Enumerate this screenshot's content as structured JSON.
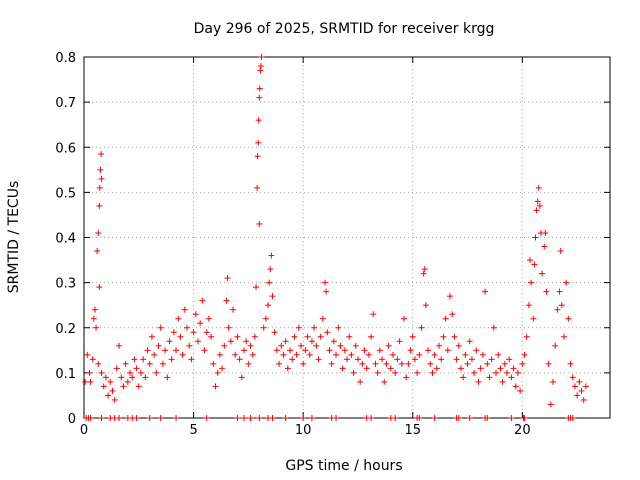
{
  "chart_data": {
    "type": "scatter",
    "title": "Day 296 of 2025, SRMTID for receiver krgg",
    "xlabel": "GPS time / hours",
    "ylabel": "SRMTID / TECUs",
    "xlim": [
      0,
      24
    ],
    "ylim": [
      0,
      0.8
    ],
    "grid": true,
    "x_ticks": [
      0,
      5,
      10,
      15,
      20
    ],
    "y_ticks": [
      0,
      0.1,
      0.2,
      0.3,
      0.4,
      0.5,
      0.6,
      0.7,
      0.8
    ],
    "x_tick_labels": [
      "0",
      "5",
      "10",
      "15",
      "20"
    ],
    "y_tick_labels": [
      "0",
      "0.1",
      "0.2",
      "0.3",
      "0.4",
      "0.5",
      "0.6",
      "0.7",
      "0.8"
    ],
    "marker_color": "#ff0000",
    "series": [
      {
        "name": "SRMTID",
        "marker": "+",
        "points": [
          [
            0.05,
            0.08
          ],
          [
            0.15,
            0.14
          ],
          [
            0.25,
            0.1
          ],
          [
            0.3,
            0.08
          ],
          [
            0.4,
            0.13
          ],
          [
            0.45,
            0.22
          ],
          [
            0.5,
            0.24
          ],
          [
            0.55,
            0.2
          ],
          [
            0.6,
            0.37
          ],
          [
            0.65,
            0.41
          ],
          [
            0.7,
            0.47
          ],
          [
            0.72,
            0.51
          ],
          [
            0.75,
            0.55
          ],
          [
            0.78,
            0.585
          ],
          [
            0.8,
            0.53
          ],
          [
            0.7,
            0.29
          ],
          [
            0.65,
            0.12
          ],
          [
            0.8,
            0.1
          ],
          [
            0.9,
            0.07
          ],
          [
            1.0,
            0.09
          ],
          [
            1.1,
            0.05
          ],
          [
            1.2,
            0.08
          ],
          [
            1.3,
            0.06
          ],
          [
            1.4,
            0.04
          ],
          [
            1.5,
            0.11
          ],
          [
            1.6,
            0.16
          ],
          [
            1.7,
            0.09
          ],
          [
            1.8,
            0.07
          ],
          [
            1.9,
            0.12
          ],
          [
            2.0,
            0.08
          ],
          [
            2.1,
            0.1
          ],
          [
            2.2,
            0.09
          ],
          [
            2.3,
            0.13
          ],
          [
            2.4,
            0.11
          ],
          [
            2.5,
            0.07
          ],
          [
            2.6,
            0.1
          ],
          [
            2.7,
            0.13
          ],
          [
            2.8,
            0.09
          ],
          [
            2.9,
            0.15
          ],
          [
            3.0,
            0.12
          ],
          [
            3.1,
            0.18
          ],
          [
            3.2,
            0.14
          ],
          [
            3.3,
            0.1
          ],
          [
            3.4,
            0.16
          ],
          [
            3.5,
            0.2
          ],
          [
            3.6,
            0.12
          ],
          [
            3.7,
            0.15
          ],
          [
            3.8,
            0.09
          ],
          [
            3.9,
            0.17
          ],
          [
            4.0,
            0.13
          ],
          [
            4.1,
            0.19
          ],
          [
            4.2,
            0.15
          ],
          [
            4.3,
            0.22
          ],
          [
            4.4,
            0.18
          ],
          [
            4.5,
            0.14
          ],
          [
            4.6,
            0.24
          ],
          [
            4.7,
            0.2
          ],
          [
            4.8,
            0.16
          ],
          [
            4.9,
            0.13
          ],
          [
            5.0,
            0.19
          ],
          [
            5.1,
            0.23
          ],
          [
            5.2,
            0.17
          ],
          [
            5.3,
            0.21
          ],
          [
            5.4,
            0.26
          ],
          [
            5.5,
            0.15
          ],
          [
            5.6,
            0.19
          ],
          [
            5.7,
            0.22
          ],
          [
            5.8,
            0.18
          ],
          [
            5.9,
            0.12
          ],
          [
            6.0,
            0.07
          ],
          [
            6.1,
            0.1
          ],
          [
            6.2,
            0.14
          ],
          [
            6.3,
            0.11
          ],
          [
            6.4,
            0.16
          ],
          [
            6.5,
            0.26
          ],
          [
            6.55,
            0.31
          ],
          [
            6.6,
            0.2
          ],
          [
            6.7,
            0.17
          ],
          [
            6.8,
            0.24
          ],
          [
            6.9,
            0.14
          ],
          [
            7.0,
            0.18
          ],
          [
            7.1,
            0.13
          ],
          [
            7.2,
            0.09
          ],
          [
            7.3,
            0.15
          ],
          [
            7.4,
            0.17
          ],
          [
            7.5,
            0.12
          ],
          [
            7.6,
            0.16
          ],
          [
            7.7,
            0.14
          ],
          [
            7.8,
            0.18
          ],
          [
            7.85,
            0.29
          ],
          [
            7.9,
            0.51
          ],
          [
            7.92,
            0.58
          ],
          [
            7.95,
            0.61
          ],
          [
            7.97,
            0.66
          ],
          [
            8.0,
            0.71
          ],
          [
            8.02,
            0.73
          ],
          [
            8.05,
            0.77
          ],
          [
            8.07,
            0.78
          ],
          [
            8.1,
            0.8
          ],
          [
            8.0,
            0.43
          ],
          [
            8.2,
            0.2
          ],
          [
            8.3,
            0.22
          ],
          [
            8.4,
            0.25
          ],
          [
            8.45,
            0.3
          ],
          [
            8.5,
            0.33
          ],
          [
            8.55,
            0.36
          ],
          [
            8.6,
            0.27
          ],
          [
            8.7,
            0.19
          ],
          [
            8.8,
            0.15
          ],
          [
            8.9,
            0.12
          ],
          [
            9.0,
            0.16
          ],
          [
            9.1,
            0.14
          ],
          [
            9.2,
            0.17
          ],
          [
            9.3,
            0.11
          ],
          [
            9.4,
            0.15
          ],
          [
            9.5,
            0.13
          ],
          [
            9.6,
            0.18
          ],
          [
            9.7,
            0.14
          ],
          [
            9.8,
            0.2
          ],
          [
            9.9,
            0.16
          ],
          [
            10.0,
            0.12
          ],
          [
            10.1,
            0.15
          ],
          [
            10.2,
            0.18
          ],
          [
            10.3,
            0.14
          ],
          [
            10.4,
            0.17
          ],
          [
            10.5,
            0.2
          ],
          [
            10.6,
            0.16
          ],
          [
            10.7,
            0.13
          ],
          [
            10.8,
            0.18
          ],
          [
            10.9,
            0.22
          ],
          [
            11.0,
            0.3
          ],
          [
            11.05,
            0.28
          ],
          [
            11.1,
            0.19
          ],
          [
            11.2,
            0.15
          ],
          [
            11.3,
            0.12
          ],
          [
            11.4,
            0.17
          ],
          [
            11.5,
            0.14
          ],
          [
            11.6,
            0.2
          ],
          [
            11.7,
            0.16
          ],
          [
            11.8,
            0.11
          ],
          [
            11.9,
            0.15
          ],
          [
            12.0,
            0.13
          ],
          [
            12.1,
            0.18
          ],
          [
            12.2,
            0.14
          ],
          [
            12.3,
            0.1
          ],
          [
            12.4,
            0.16
          ],
          [
            12.5,
            0.13
          ],
          [
            12.6,
            0.08
          ],
          [
            12.7,
            0.12
          ],
          [
            12.8,
            0.15
          ],
          [
            12.9,
            0.11
          ],
          [
            13.0,
            0.14
          ],
          [
            13.1,
            0.18
          ],
          [
            13.2,
            0.23
          ],
          [
            13.3,
            0.12
          ],
          [
            13.4,
            0.1
          ],
          [
            13.5,
            0.15
          ],
          [
            13.6,
            0.13
          ],
          [
            13.7,
            0.08
          ],
          [
            13.8,
            0.12
          ],
          [
            13.9,
            0.16
          ],
          [
            14.0,
            0.11
          ],
          [
            14.1,
            0.14
          ],
          [
            14.2,
            0.1
          ],
          [
            14.3,
            0.13
          ],
          [
            14.4,
            0.17
          ],
          [
            14.5,
            0.12
          ],
          [
            14.6,
            0.22
          ],
          [
            14.7,
            0.09
          ],
          [
            14.8,
            0.12
          ],
          [
            14.9,
            0.15
          ],
          [
            15.0,
            0.18
          ],
          [
            15.1,
            0.13
          ],
          [
            15.2,
            0.1
          ],
          [
            15.3,
            0.14
          ],
          [
            15.4,
            0.2
          ],
          [
            15.5,
            0.32
          ],
          [
            15.55,
            0.33
          ],
          [
            15.6,
            0.25
          ],
          [
            15.7,
            0.15
          ],
          [
            15.8,
            0.12
          ],
          [
            15.9,
            0.1
          ],
          [
            16.0,
            0.14
          ],
          [
            16.1,
            0.11
          ],
          [
            16.2,
            0.16
          ],
          [
            16.3,
            0.13
          ],
          [
            16.4,
            0.18
          ],
          [
            16.5,
            0.22
          ],
          [
            16.6,
            0.15
          ],
          [
            16.7,
            0.27
          ],
          [
            16.8,
            0.23
          ],
          [
            16.9,
            0.18
          ],
          [
            17.0,
            0.13
          ],
          [
            17.1,
            0.16
          ],
          [
            17.2,
            0.11
          ],
          [
            17.3,
            0.09
          ],
          [
            17.4,
            0.14
          ],
          [
            17.5,
            0.12
          ],
          [
            17.6,
            0.17
          ],
          [
            17.7,
            0.13
          ],
          [
            17.8,
            0.1
          ],
          [
            17.9,
            0.15
          ],
          [
            18.0,
            0.08
          ],
          [
            18.1,
            0.11
          ],
          [
            18.2,
            0.14
          ],
          [
            18.3,
            0.28
          ],
          [
            18.4,
            0.12
          ],
          [
            18.5,
            0.09
          ],
          [
            18.6,
            0.13
          ],
          [
            18.7,
            0.2
          ],
          [
            18.8,
            0.1
          ],
          [
            18.9,
            0.14
          ],
          [
            19.0,
            0.11
          ],
          [
            19.1,
            0.08
          ],
          [
            19.2,
            0.12
          ],
          [
            19.3,
            0.1
          ],
          [
            19.4,
            0.13
          ],
          [
            19.5,
            0.09
          ],
          [
            19.6,
            0.11
          ],
          [
            19.7,
            0.07
          ],
          [
            19.8,
            0.1
          ],
          [
            19.9,
            0.06
          ],
          [
            20.0,
            0.12
          ],
          [
            20.1,
            0.14
          ],
          [
            20.2,
            0.18
          ],
          [
            20.3,
            0.25
          ],
          [
            20.35,
            0.35
          ],
          [
            20.4,
            0.3
          ],
          [
            20.5,
            0.22
          ],
          [
            20.55,
            0.34
          ],
          [
            20.6,
            0.4
          ],
          [
            20.65,
            0.46
          ],
          [
            20.7,
            0.48
          ],
          [
            20.75,
            0.51
          ],
          [
            20.8,
            0.47
          ],
          [
            20.85,
            0.41
          ],
          [
            20.9,
            0.32
          ],
          [
            21.0,
            0.38
          ],
          [
            21.05,
            0.41
          ],
          [
            21.1,
            0.28
          ],
          [
            21.2,
            0.12
          ],
          [
            21.3,
            0.03
          ],
          [
            21.4,
            0.08
          ],
          [
            21.5,
            0.16
          ],
          [
            21.6,
            0.24
          ],
          [
            21.7,
            0.28
          ],
          [
            21.75,
            0.37
          ],
          [
            21.8,
            0.25
          ],
          [
            21.9,
            0.18
          ],
          [
            22.0,
            0.3
          ],
          [
            22.1,
            0.22
          ],
          [
            22.2,
            0.12
          ],
          [
            22.3,
            0.09
          ],
          [
            22.4,
            0.07
          ],
          [
            22.5,
            0.05
          ],
          [
            22.6,
            0.08
          ],
          [
            22.7,
            0.06
          ],
          [
            22.8,
            0.04
          ],
          [
            22.9,
            0.07
          ]
        ]
      }
    ],
    "zero_points_x": [
      0.1,
      0.2,
      0.3,
      0.8,
      1.2,
      1.4,
      1.6,
      2.0,
      2.2,
      2.4,
      3.0,
      3.5,
      4.2,
      5.6,
      7.0,
      7.3,
      7.6,
      8.0,
      8.4,
      8.6,
      9.2,
      10.0,
      10.4,
      11.3,
      11.5,
      12.9,
      13.1,
      14.0,
      14.2,
      15.2,
      15.3,
      16.0,
      17.0,
      17.1,
      17.6,
      18.3,
      18.4,
      19.5,
      20.05,
      20.1,
      22.1,
      22.2,
      22.3
    ]
  }
}
